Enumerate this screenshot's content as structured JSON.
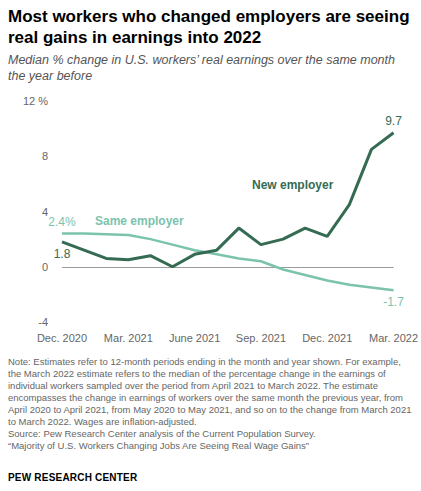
{
  "chart_data": {
    "type": "line",
    "title": "Most workers who changed employers are seeing real gains in earnings into 2022",
    "subtitle": "Median % change in U.S. workers’ real earnings over the same month the year before",
    "categories": [
      "Dec. 2020",
      null,
      null,
      "Mar. 2021",
      null,
      null,
      "June 2021",
      null,
      null,
      "Sep. 2021",
      null,
      null,
      "Dec. 2021",
      null,
      null,
      "Mar. 2022"
    ],
    "series": [
      {
        "name": "New employer",
        "color": "#356b52",
        "values": [
          1.8,
          1.2,
          0.6,
          0.5,
          0.8,
          0.0,
          0.9,
          1.2,
          2.8,
          1.6,
          2.0,
          2.8,
          2.2,
          4.5,
          8.5,
          9.7
        ],
        "value_labels": [
          "1.8",
          null,
          null,
          null,
          null,
          null,
          null,
          null,
          null,
          null,
          null,
          null,
          null,
          null,
          null,
          "9.7"
        ]
      },
      {
        "name": "Same employer",
        "color": "#7cc3ad",
        "values": [
          2.4,
          2.4,
          2.35,
          2.3,
          2.0,
          1.6,
          1.2,
          0.9,
          0.6,
          0.4,
          -0.2,
          -0.6,
          -1.0,
          -1.3,
          -1.5,
          -1.7
        ],
        "value_labels": [
          "2.4%",
          null,
          null,
          null,
          null,
          null,
          null,
          null,
          null,
          null,
          null,
          null,
          null,
          null,
          null,
          "-1.7"
        ]
      }
    ],
    "ylim": [
      -4,
      12
    ],
    "yticks": [
      -4,
      0,
      4,
      8,
      {
        "value": 12,
        "label": "12 %"
      }
    ],
    "grid": false,
    "data_labels": true,
    "note": "Note: Estimates refer to 12-month periods ending in the month and year shown. For example, the March 2022 estimate refers to the median of the percentage change in the earnings of individual workers sampled over the period from April 2021 to March 2022. The estimate encompasses the change in earnings of workers over the same month the previous year, from April 2020 to April 2021, from May 2020 to May 2021, and so on to the change from March 2021 to March 2022. Wages are inflation-adjusted.",
    "source": "Source: Pew Research Center analysis of the Current Population Survey.",
    "report": "“Majority of U.S. Workers Changing Jobs Are Seeing Real Wage Gains”",
    "credit": "PEW RESEARCH CENTER"
  }
}
